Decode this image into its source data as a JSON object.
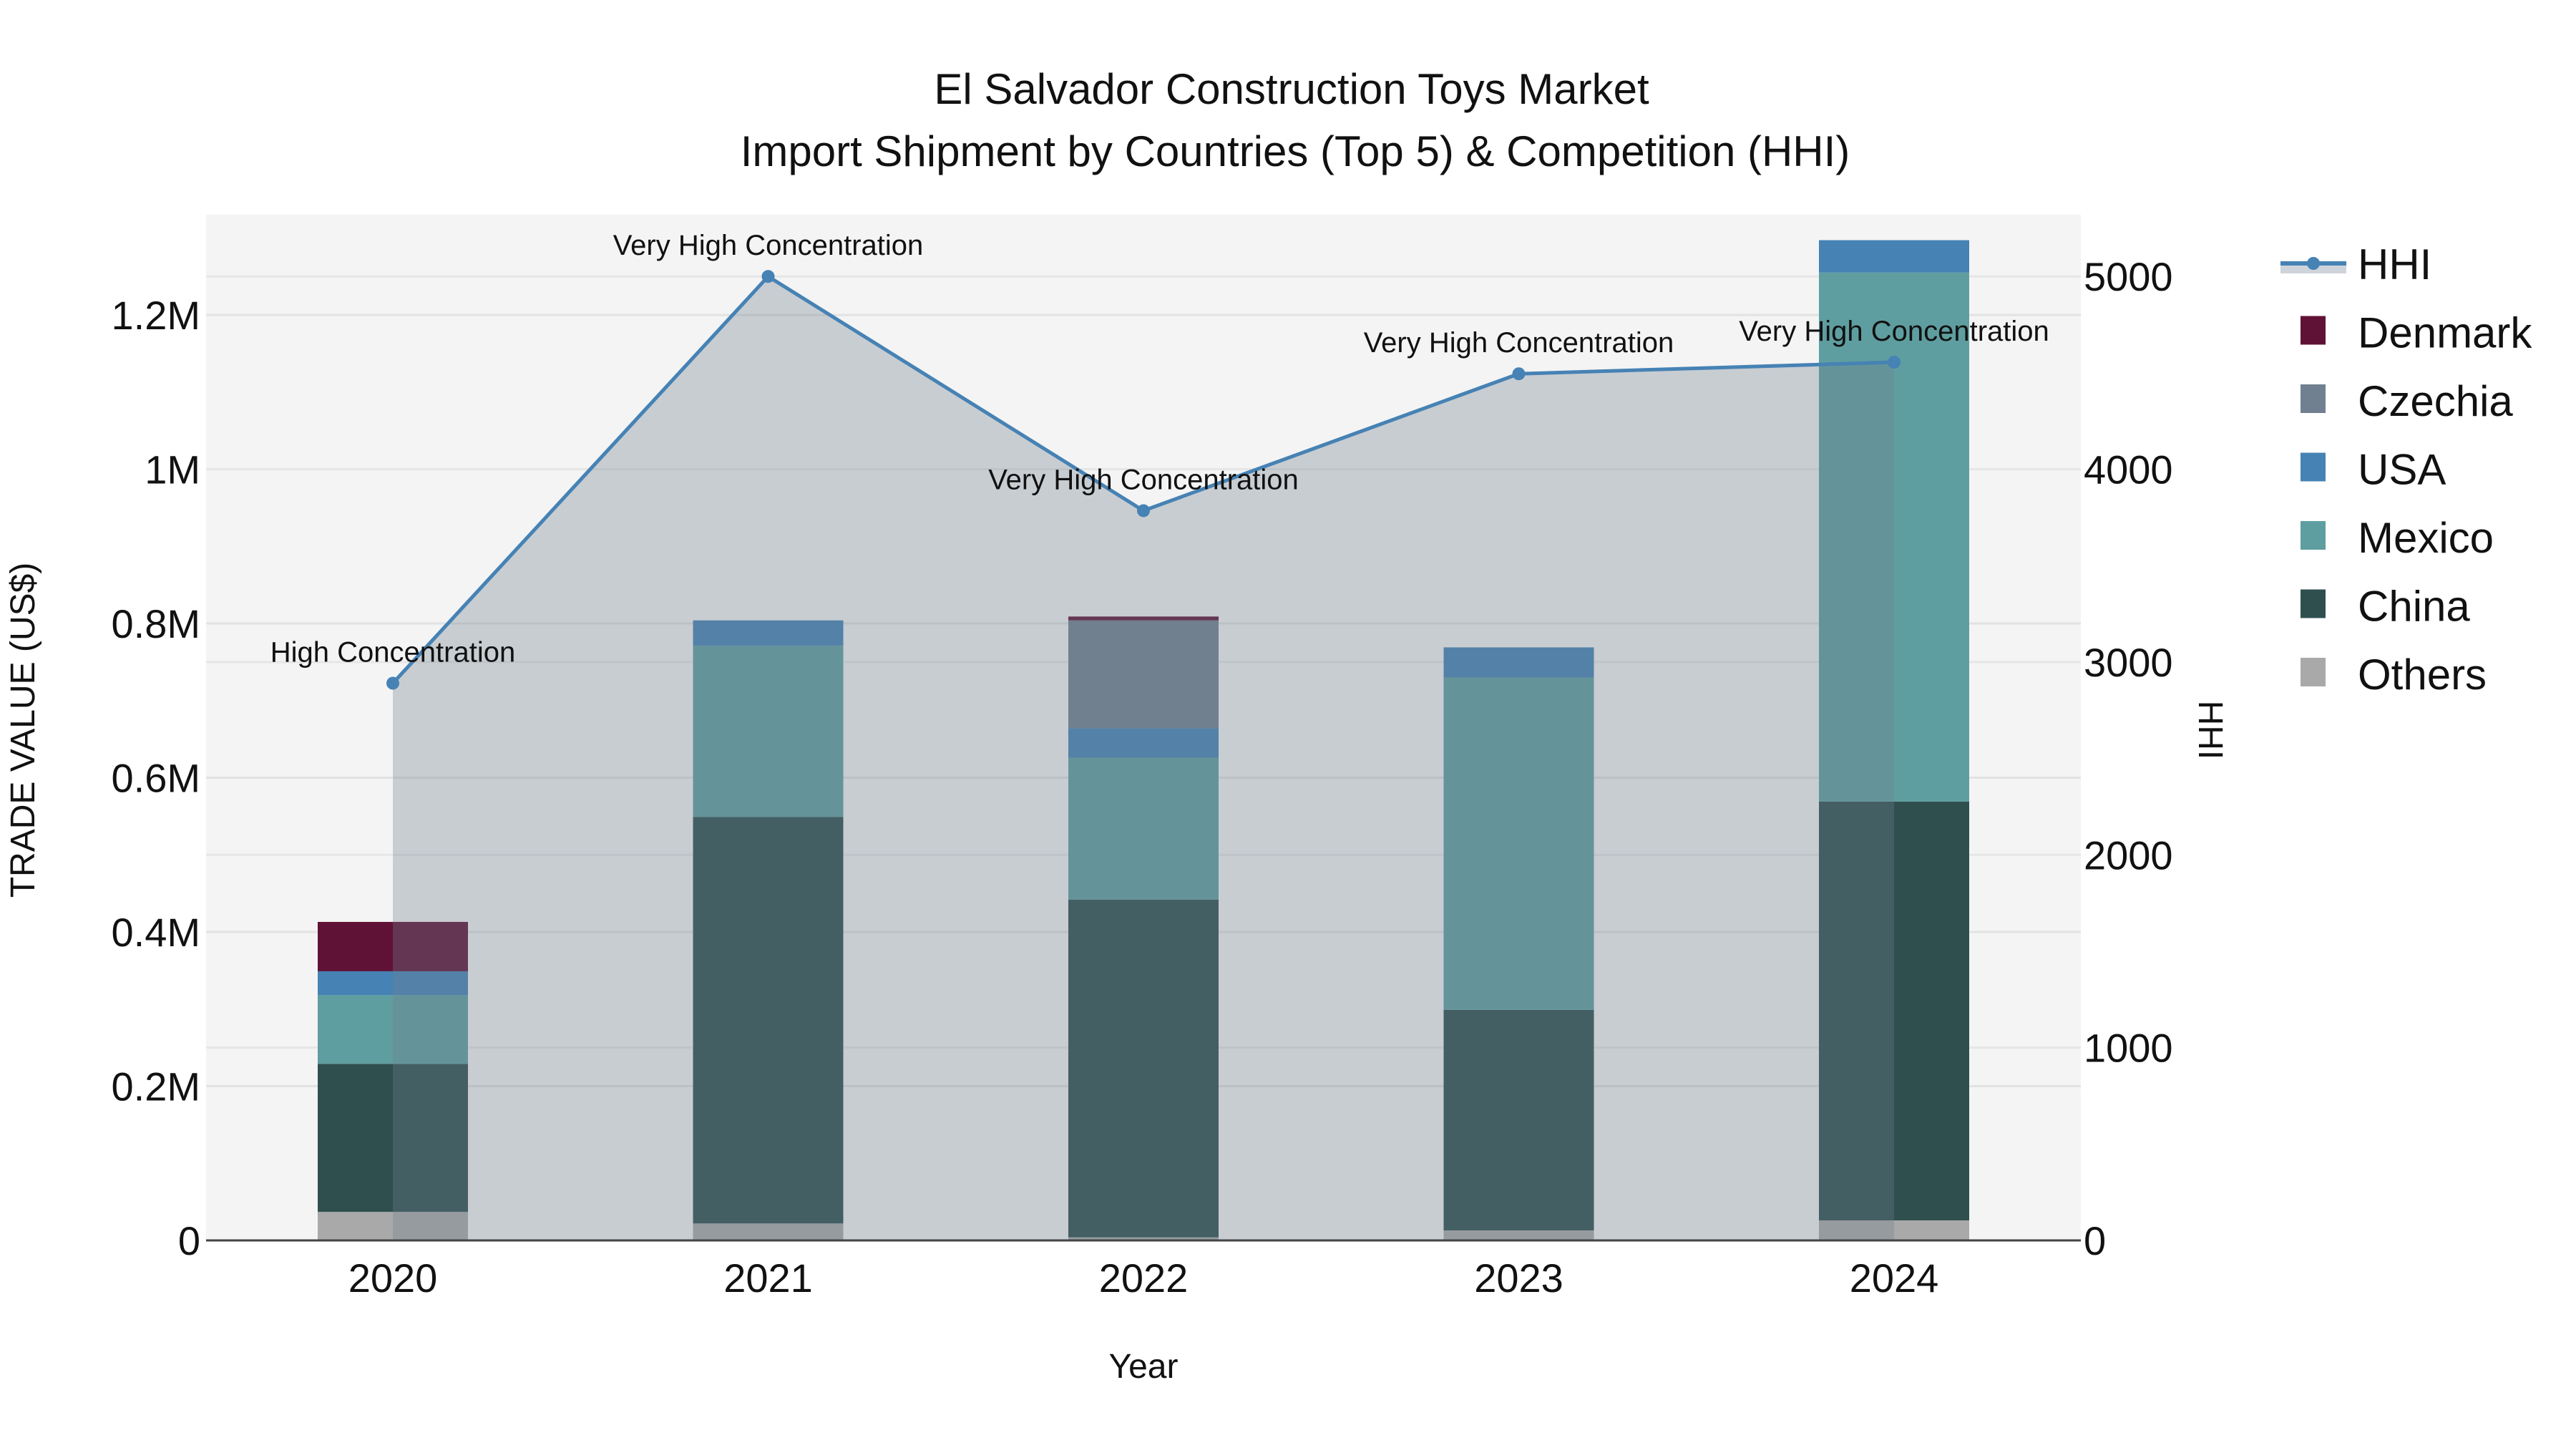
{
  "chart_data": {
    "type": "bar",
    "title_line1": "El Salvador Construction Toys Market",
    "title_line2": "Import Shipment by Countries (Top 5) & Competition (HHI)",
    "xlabel": "Year",
    "ylabel": "TRADE VALUE (US$)",
    "y2label": "HHI",
    "categories": [
      "2020",
      "2021",
      "2022",
      "2023",
      "2024"
    ],
    "ylim": [
      0,
      1330000
    ],
    "y2lim": [
      0,
      5320
    ],
    "yticks": [
      {
        "v": 0,
        "label": "0"
      },
      {
        "v": 200000,
        "label": "0.2M"
      },
      {
        "v": 400000,
        "label": "0.4M"
      },
      {
        "v": 600000,
        "label": "0.6M"
      },
      {
        "v": 800000,
        "label": "0.8M"
      },
      {
        "v": 1000000,
        "label": "1M"
      },
      {
        "v": 1200000,
        "label": "1.2M"
      }
    ],
    "y2ticks": [
      {
        "v": 0,
        "label": "0"
      },
      {
        "v": 1000,
        "label": "1000"
      },
      {
        "v": 2000,
        "label": "2000"
      },
      {
        "v": 3000,
        "label": "3000"
      },
      {
        "v": 4000,
        "label": "4000"
      },
      {
        "v": 5000,
        "label": "5000"
      }
    ],
    "series": [
      {
        "name": "Others",
        "color": "#a9a9a9",
        "values": [
          37000,
          22000,
          4000,
          13000,
          26000
        ]
      },
      {
        "name": "China",
        "color": "#2f4f4f",
        "values": [
          192000,
          527000,
          438000,
          286000,
          543000
        ]
      },
      {
        "name": "Mexico",
        "color": "#5f9ea0",
        "values": [
          89000,
          222000,
          184000,
          431000,
          686000
        ]
      },
      {
        "name": "USA",
        "color": "#4682b4",
        "values": [
          31000,
          33000,
          38000,
          39000,
          42000
        ]
      },
      {
        "name": "Czechia",
        "color": "#708090",
        "values": [
          0,
          0,
          140000,
          0,
          0
        ]
      },
      {
        "name": "Denmark",
        "color": "#601236",
        "values": [
          64000,
          0,
          5000,
          0,
          0
        ]
      }
    ],
    "hhi": {
      "name": "HHI",
      "color": "#4682b4",
      "values": [
        2890,
        5000,
        3785,
        4495,
        4555
      ],
      "annotations": [
        "High Concentration",
        "Very High Concentration",
        "Very High Concentration",
        "Very High Concentration",
        "Very High Concentration"
      ]
    },
    "legend": [
      "HHI",
      "Denmark",
      "Czechia",
      "USA",
      "Mexico",
      "China",
      "Others"
    ],
    "legend_position": "right"
  }
}
